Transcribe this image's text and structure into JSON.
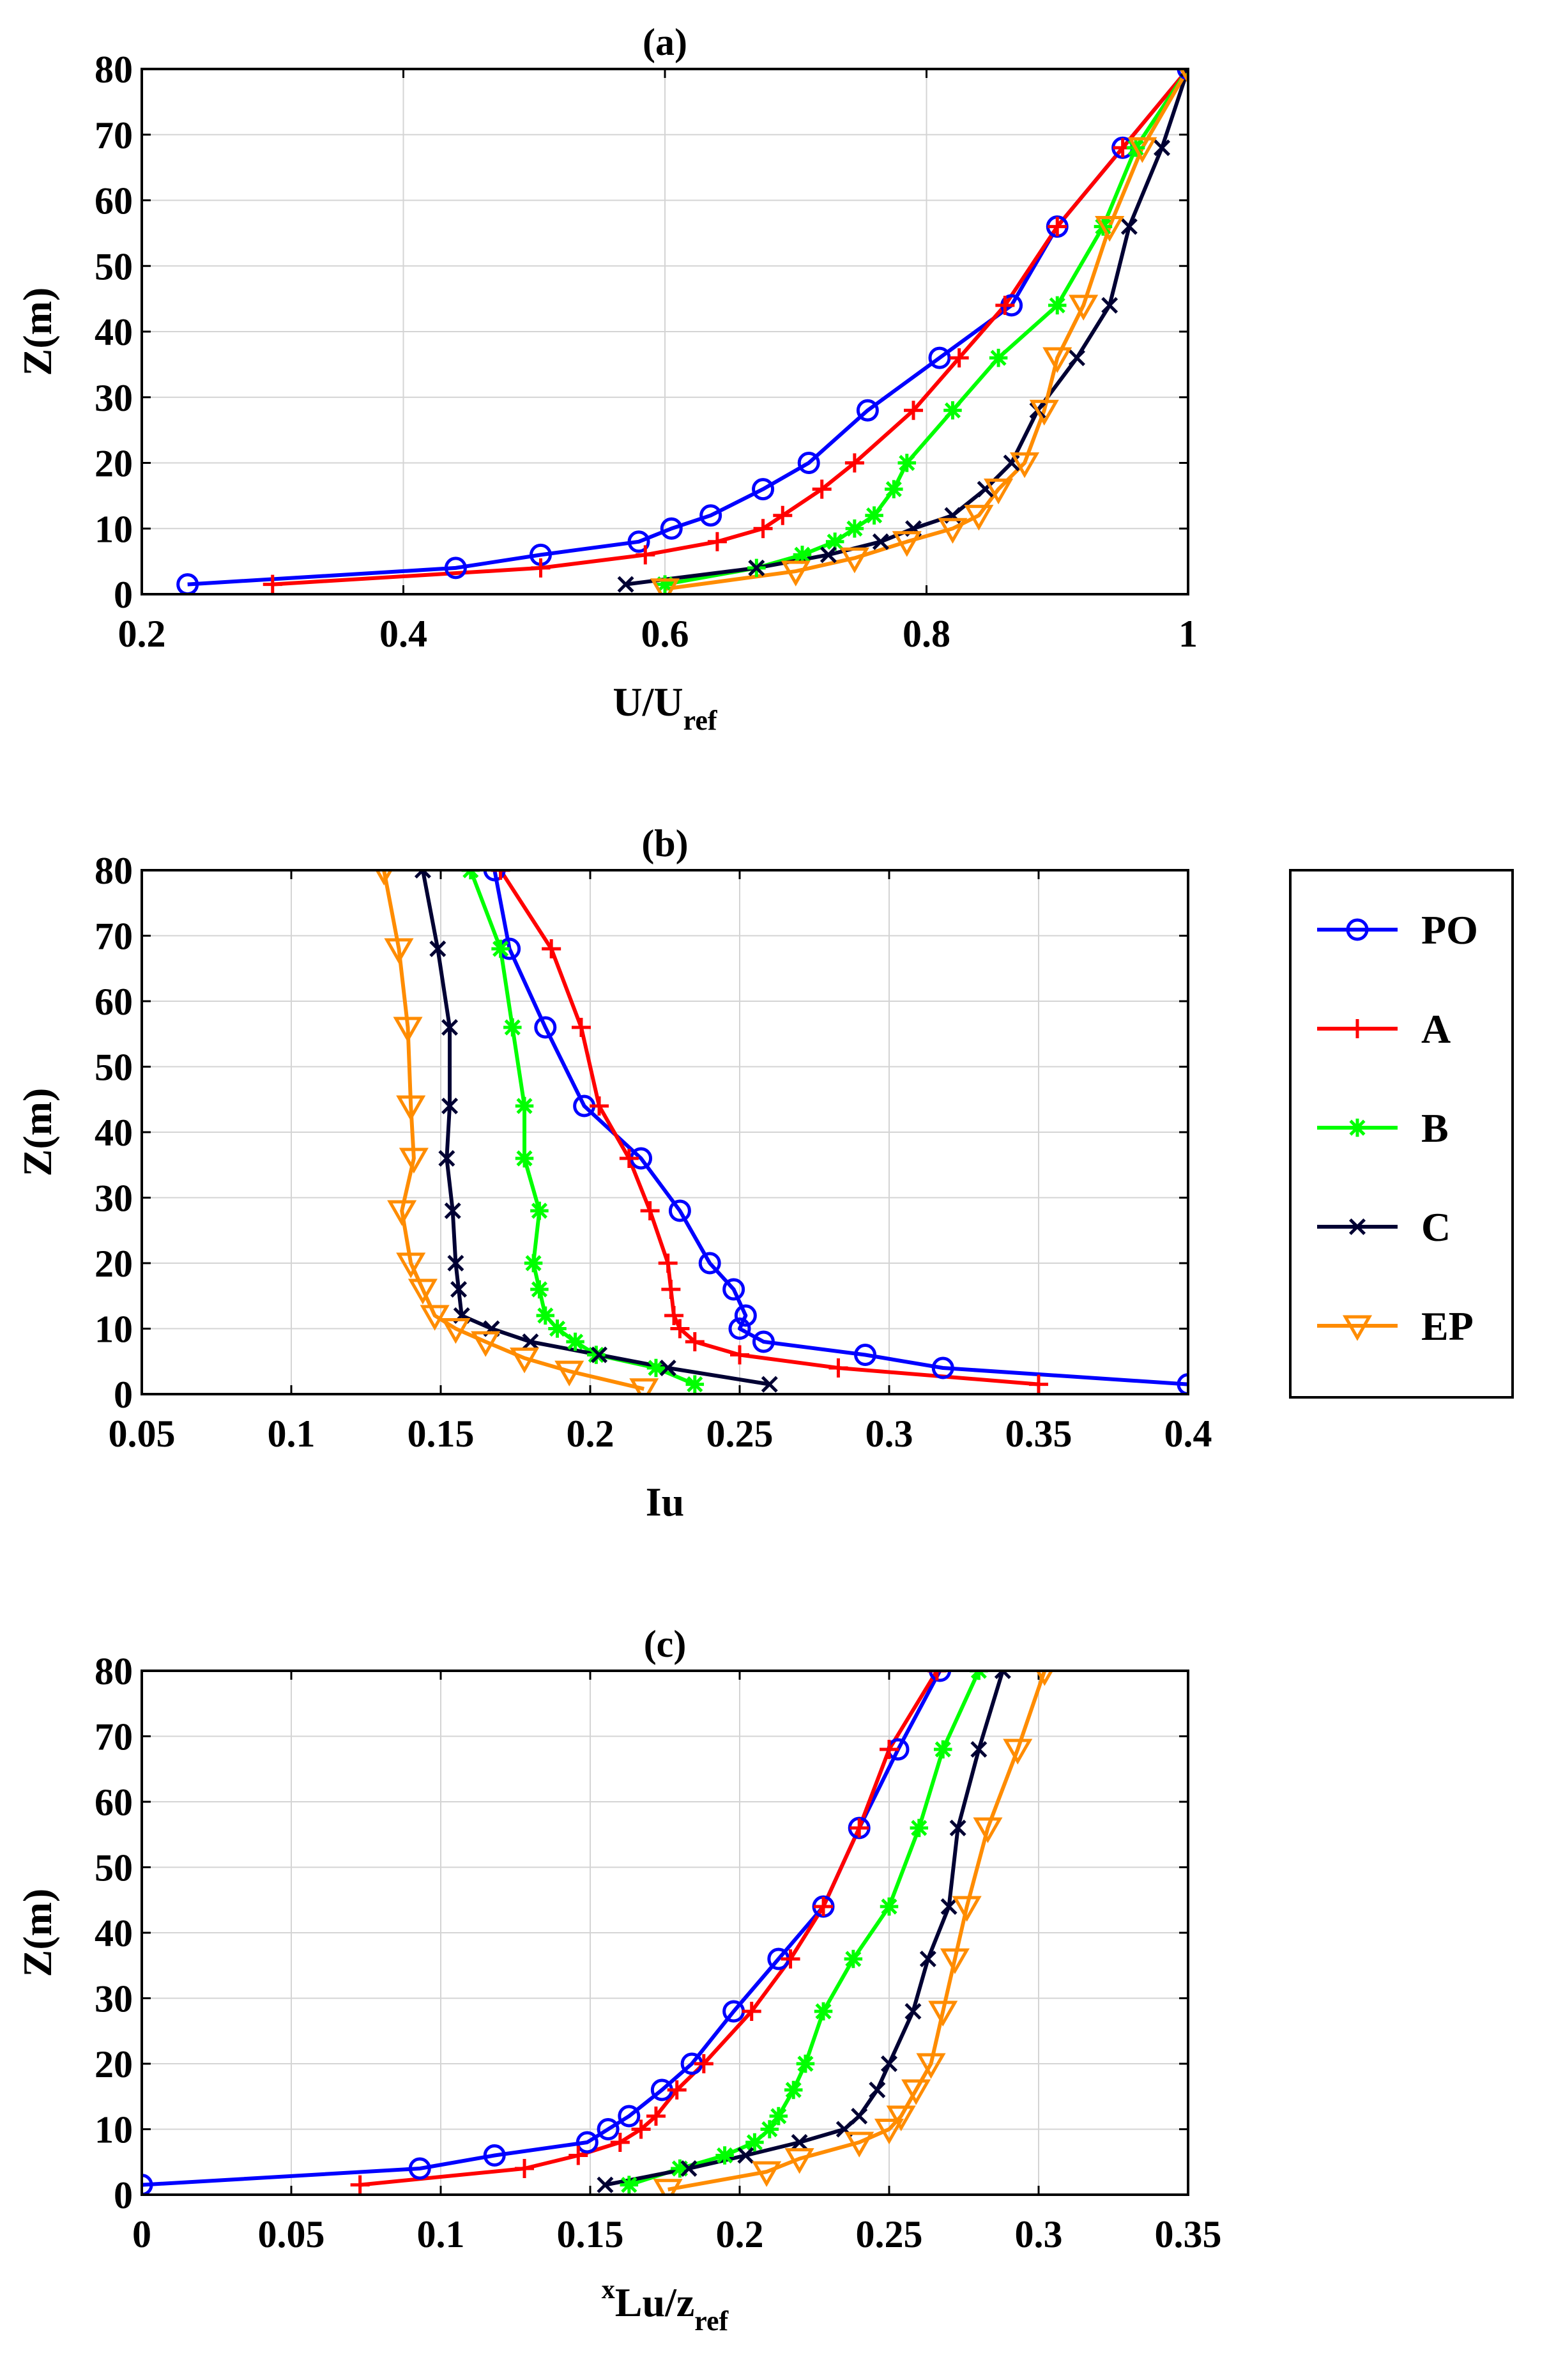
{
  "figure": {
    "legend": {
      "entries": [
        {
          "name": "PO",
          "color": "#0000ff",
          "marker": "circle"
        },
        {
          "name": "A",
          "color": "#ff0000",
          "marker": "plus"
        },
        {
          "name": "B",
          "color": "#00ff00",
          "marker": "asterisk"
        },
        {
          "name": "C",
          "color": "#000033",
          "marker": "cross"
        },
        {
          "name": "EP",
          "color": "#ff8c00",
          "marker": "triangle-down"
        }
      ]
    }
  },
  "chart_data": [
    {
      "id": "a",
      "type": "line",
      "title": "(a)",
      "xlabel": "U/U",
      "xlabel_sub": "ref",
      "xlabel_sup": "",
      "ylabel": "Z(m)",
      "xlim": [
        0.2,
        1.0
      ],
      "ylim": [
        0,
        80
      ],
      "xticks": [
        0.2,
        0.4,
        0.6,
        0.8,
        1.0
      ],
      "xtick_labels": [
        "0.2",
        "0.4",
        "0.6",
        "0.8",
        "1"
      ],
      "yticks": [
        0,
        10,
        20,
        30,
        40,
        50,
        60,
        70,
        80
      ],
      "ytick_labels": [
        "0",
        "10",
        "20",
        "30",
        "40",
        "50",
        "60",
        "70",
        "80"
      ],
      "series": [
        {
          "name": "PO",
          "color": "#0000ff",
          "marker": "circle",
          "points": [
            [
              0.235,
              1.5
            ],
            [
              0.44,
              4
            ],
            [
              0.505,
              6
            ],
            [
              0.58,
              8
            ],
            [
              0.605,
              10
            ],
            [
              0.635,
              12
            ],
            [
              0.675,
              16
            ],
            [
              0.71,
              20
            ],
            [
              0.755,
              28
            ],
            [
              0.81,
              36
            ],
            [
              0.865,
              44
            ],
            [
              0.9,
              56
            ],
            [
              0.95,
              68
            ],
            [
              1.0,
              80
            ]
          ]
        },
        {
          "name": "A",
          "color": "#ff0000",
          "marker": "plus",
          "points": [
            [
              0.3,
              1.5
            ],
            [
              0.505,
              4
            ],
            [
              0.585,
              6
            ],
            [
              0.64,
              8
            ],
            [
              0.675,
              10
            ],
            [
              0.69,
              12
            ],
            [
              0.72,
              16
            ],
            [
              0.745,
              20
            ],
            [
              0.79,
              28
            ],
            [
              0.825,
              36
            ],
            [
              0.86,
              44
            ],
            [
              0.9,
              56
            ],
            [
              0.95,
              68
            ],
            [
              1.0,
              80
            ]
          ]
        },
        {
          "name": "B",
          "color": "#00ff00",
          "marker": "asterisk",
          "points": [
            [
              0.6,
              1.5
            ],
            [
              0.67,
              4
            ],
            [
              0.705,
              6
            ],
            [
              0.73,
              8
            ],
            [
              0.745,
              10
            ],
            [
              0.76,
              12
            ],
            [
              0.775,
              16
            ],
            [
              0.785,
              20
            ],
            [
              0.82,
              28
            ],
            [
              0.855,
              36
            ],
            [
              0.9,
              44
            ],
            [
              0.935,
              56
            ],
            [
              0.96,
              68
            ],
            [
              1.0,
              80
            ]
          ]
        },
        {
          "name": "C",
          "color": "#000033",
          "marker": "cross",
          "points": [
            [
              0.57,
              1.5
            ],
            [
              0.67,
              4
            ],
            [
              0.725,
              6
            ],
            [
              0.765,
              8
            ],
            [
              0.79,
              10
            ],
            [
              0.82,
              12
            ],
            [
              0.845,
              16
            ],
            [
              0.865,
              20
            ],
            [
              0.885,
              28
            ],
            [
              0.915,
              36
            ],
            [
              0.94,
              44
            ],
            [
              0.955,
              56
            ],
            [
              0.98,
              68
            ],
            [
              1.0,
              80
            ]
          ]
        },
        {
          "name": "EP",
          "color": "#ff8c00",
          "marker": "triangle-down",
          "points": [
            [
              0.6,
              0.8
            ],
            [
              0.7,
              3.5
            ],
            [
              0.745,
              5.5
            ],
            [
              0.785,
              8
            ],
            [
              0.82,
              10
            ],
            [
              0.84,
              12
            ],
            [
              0.855,
              16
            ],
            [
              0.875,
              20
            ],
            [
              0.89,
              28
            ],
            [
              0.9,
              36
            ],
            [
              0.92,
              44
            ],
            [
              0.94,
              56
            ],
            [
              0.965,
              68
            ],
            [
              1.0,
              80
            ]
          ]
        }
      ]
    },
    {
      "id": "b",
      "type": "line",
      "title": "(b)",
      "xlabel": "Iu",
      "xlabel_sub": "",
      "xlabel_sup": "",
      "ylabel": "Z(m)",
      "xlim": [
        0.05,
        0.4
      ],
      "ylim": [
        0,
        80
      ],
      "xticks": [
        0.05,
        0.1,
        0.15,
        0.2,
        0.25,
        0.3,
        0.35,
        0.4
      ],
      "xtick_labels": [
        "0.05",
        "0.1",
        "0.15",
        "0.2",
        "0.25",
        "0.3",
        "0.35",
        "0.4"
      ],
      "yticks": [
        0,
        10,
        20,
        30,
        40,
        50,
        60,
        70,
        80
      ],
      "ytick_labels": [
        "0",
        "10",
        "20",
        "30",
        "40",
        "50",
        "60",
        "70",
        "80"
      ],
      "series": [
        {
          "name": "PO",
          "color": "#0000ff",
          "marker": "circle",
          "points": [
            [
              0.4,
              1.5
            ],
            [
              0.318,
              4
            ],
            [
              0.292,
              6
            ],
            [
              0.258,
              8
            ],
            [
              0.25,
              10
            ],
            [
              0.252,
              12
            ],
            [
              0.248,
              16
            ],
            [
              0.24,
              20
            ],
            [
              0.23,
              28
            ],
            [
              0.217,
              36
            ],
            [
              0.198,
              44
            ],
            [
              0.185,
              56
            ],
            [
              0.173,
              68
            ],
            [
              0.168,
              80
            ]
          ]
        },
        {
          "name": "A",
          "color": "#ff0000",
          "marker": "plus",
          "points": [
            [
              0.35,
              1.5
            ],
            [
              0.283,
              4
            ],
            [
              0.25,
              6
            ],
            [
              0.235,
              8
            ],
            [
              0.23,
              10
            ],
            [
              0.228,
              12
            ],
            [
              0.227,
              16
            ],
            [
              0.226,
              20
            ],
            [
              0.22,
              28
            ],
            [
              0.213,
              36
            ],
            [
              0.203,
              44
            ],
            [
              0.197,
              56
            ],
            [
              0.187,
              68
            ],
            [
              0.17,
              80
            ]
          ]
        },
        {
          "name": "B",
          "color": "#00ff00",
          "marker": "asterisk",
          "points": [
            [
              0.235,
              1.5
            ],
            [
              0.222,
              4
            ],
            [
              0.202,
              6
            ],
            [
              0.195,
              8
            ],
            [
              0.189,
              10
            ],
            [
              0.185,
              12
            ],
            [
              0.183,
              16
            ],
            [
              0.181,
              20
            ],
            [
              0.183,
              28
            ],
            [
              0.178,
              36
            ],
            [
              0.178,
              44
            ],
            [
              0.174,
              56
            ],
            [
              0.17,
              68
            ],
            [
              0.16,
              80
            ]
          ]
        },
        {
          "name": "C",
          "color": "#000033",
          "marker": "cross",
          "points": [
            [
              0.26,
              1.5
            ],
            [
              0.226,
              4
            ],
            [
              0.203,
              6
            ],
            [
              0.18,
              8
            ],
            [
              0.167,
              10
            ],
            [
              0.157,
              12
            ],
            [
              0.156,
              16
            ],
            [
              0.155,
              20
            ],
            [
              0.154,
              28
            ],
            [
              0.152,
              36
            ],
            [
              0.153,
              44
            ],
            [
              0.153,
              56
            ],
            [
              0.149,
              68
            ],
            [
              0.144,
              80
            ]
          ]
        },
        {
          "name": "EP",
          "color": "#ff8c00",
          "marker": "triangle-down",
          "points": [
            [
              0.218,
              0.8
            ],
            [
              0.193,
              3.5
            ],
            [
              0.178,
              5.5
            ],
            [
              0.165,
              8
            ],
            [
              0.155,
              10
            ],
            [
              0.148,
              12
            ],
            [
              0.144,
              16
            ],
            [
              0.14,
              20
            ],
            [
              0.137,
              28
            ],
            [
              0.141,
              36
            ],
            [
              0.14,
              44
            ],
            [
              0.139,
              56
            ],
            [
              0.136,
              68
            ],
            [
              0.131,
              80
            ]
          ]
        }
      ]
    },
    {
      "id": "c",
      "type": "line",
      "title": "(c)",
      "xlabel": "Lu/z",
      "xlabel_sub": "ref",
      "xlabel_sup": "x",
      "ylabel": "Z(m)",
      "xlim": [
        0,
        0.35
      ],
      "ylim": [
        0,
        80
      ],
      "xticks": [
        0,
        0.05,
        0.1,
        0.15,
        0.2,
        0.25,
        0.3,
        0.35
      ],
      "xtick_labels": [
        "0",
        "0.05",
        "0.1",
        "0.15",
        "0.2",
        "0.25",
        "0.3",
        "0.35"
      ],
      "yticks": [
        0,
        10,
        20,
        30,
        40,
        50,
        60,
        70,
        80
      ],
      "ytick_labels": [
        "0",
        "10",
        "20",
        "30",
        "40",
        "50",
        "60",
        "70",
        "80"
      ],
      "series": [
        {
          "name": "PO",
          "color": "#0000ff",
          "marker": "circle",
          "points": [
            [
              0.0,
              1.5
            ],
            [
              0.093,
              4
            ],
            [
              0.118,
              6
            ],
            [
              0.149,
              8
            ],
            [
              0.156,
              10
            ],
            [
              0.163,
              12
            ],
            [
              0.174,
              16
            ],
            [
              0.184,
              20
            ],
            [
              0.198,
              28
            ],
            [
              0.213,
              36
            ],
            [
              0.228,
              44
            ],
            [
              0.24,
              56
            ],
            [
              0.253,
              68
            ],
            [
              0.267,
              80
            ]
          ]
        },
        {
          "name": "A",
          "color": "#ff0000",
          "marker": "plus",
          "points": [
            [
              0.073,
              1.5
            ],
            [
              0.128,
              4
            ],
            [
              0.146,
              6
            ],
            [
              0.16,
              8
            ],
            [
              0.167,
              10
            ],
            [
              0.172,
              12
            ],
            [
              0.179,
              16
            ],
            [
              0.188,
              20
            ],
            [
              0.204,
              28
            ],
            [
              0.217,
              36
            ],
            [
              0.228,
              44
            ],
            [
              0.24,
              56
            ],
            [
              0.25,
              68
            ],
            [
              0.266,
              80
            ]
          ]
        },
        {
          "name": "B",
          "color": "#00ff00",
          "marker": "asterisk",
          "points": [
            [
              0.163,
              1.5
            ],
            [
              0.18,
              4
            ],
            [
              0.195,
              6
            ],
            [
              0.205,
              8
            ],
            [
              0.21,
              10
            ],
            [
              0.213,
              12
            ],
            [
              0.218,
              16
            ],
            [
              0.222,
              20
            ],
            [
              0.228,
              28
            ],
            [
              0.238,
              36
            ],
            [
              0.25,
              44
            ],
            [
              0.26,
              56
            ],
            [
              0.268,
              68
            ],
            [
              0.28,
              80
            ]
          ]
        },
        {
          "name": "C",
          "color": "#000033",
          "marker": "cross",
          "points": [
            [
              0.155,
              1.5
            ],
            [
              0.183,
              4
            ],
            [
              0.202,
              6
            ],
            [
              0.22,
              8
            ],
            [
              0.235,
              10
            ],
            [
              0.24,
              12
            ],
            [
              0.246,
              16
            ],
            [
              0.25,
              20
            ],
            [
              0.258,
              28
            ],
            [
              0.263,
              36
            ],
            [
              0.27,
              44
            ],
            [
              0.273,
              56
            ],
            [
              0.28,
              68
            ],
            [
              0.288,
              80
            ]
          ]
        },
        {
          "name": "EP",
          "color": "#ff8c00",
          "marker": "triangle-down",
          "points": [
            [
              0.176,
              0.8
            ],
            [
              0.209,
              3.5
            ],
            [
              0.22,
              5.5
            ],
            [
              0.24,
              8
            ],
            [
              0.25,
              10
            ],
            [
              0.254,
              12
            ],
            [
              0.259,
              16
            ],
            [
              0.264,
              20
            ],
            [
              0.268,
              28
            ],
            [
              0.272,
              36
            ],
            [
              0.276,
              44
            ],
            [
              0.283,
              56
            ],
            [
              0.293,
              68
            ],
            [
              0.302,
              80
            ]
          ]
        }
      ]
    }
  ]
}
